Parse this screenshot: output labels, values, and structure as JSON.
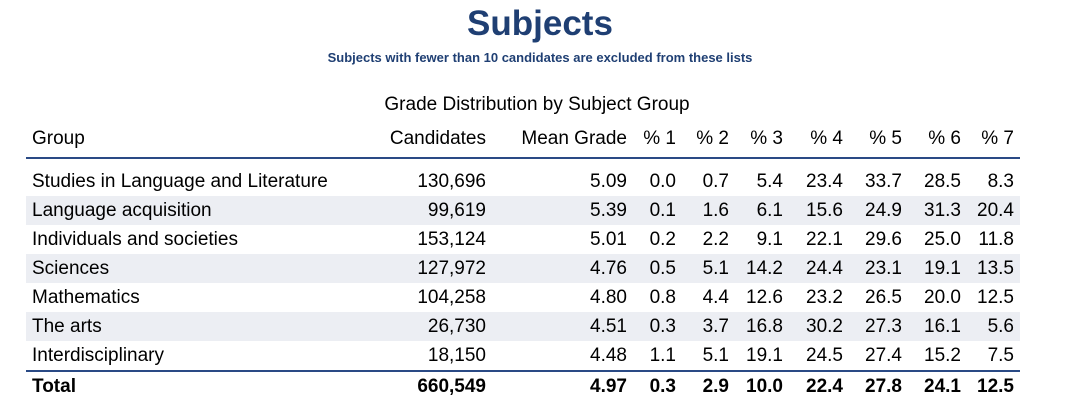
{
  "header": {
    "title": "Subjects",
    "subtitle": "Subjects with fewer than 10 candidates are excluded from these lists"
  },
  "table": {
    "caption": "Grade Distribution by Subject Group",
    "columns": [
      "Group",
      "Candidates",
      "Mean Grade",
      "% 1",
      "% 2",
      "% 3",
      "% 4",
      "% 5",
      "% 6",
      "% 7"
    ],
    "rows": [
      [
        "Studies in Language and Literature",
        "130,696",
        "5.09",
        "0.0",
        "0.7",
        "5.4",
        "23.4",
        "33.7",
        "28.5",
        "8.3"
      ],
      [
        "Language acquisition",
        "99,619",
        "5.39",
        "0.1",
        "1.6",
        "6.1",
        "15.6",
        "24.9",
        "31.3",
        "20.4"
      ],
      [
        "Individuals and societies",
        "153,124",
        "5.01",
        "0.2",
        "2.2",
        "9.1",
        "22.1",
        "29.6",
        "25.0",
        "11.8"
      ],
      [
        "Sciences",
        "127,972",
        "4.76",
        "0.5",
        "5.1",
        "14.2",
        "24.4",
        "23.1",
        "19.1",
        "13.5"
      ],
      [
        "Mathematics",
        "104,258",
        "4.80",
        "0.8",
        "4.4",
        "12.6",
        "23.2",
        "26.5",
        "20.0",
        "12.5"
      ],
      [
        "The arts",
        "26,730",
        "4.51",
        "0.3",
        "3.7",
        "16.8",
        "30.2",
        "27.3",
        "16.1",
        "5.6"
      ],
      [
        "Interdisciplinary",
        "18,150",
        "4.48",
        "1.1",
        "5.1",
        "19.1",
        "24.5",
        "27.4",
        "15.2",
        "7.5"
      ]
    ],
    "total": [
      "Total",
      "660,549",
      "4.97",
      "0.3",
      "2.9",
      "10.0",
      "22.4",
      "27.8",
      "24.1",
      "12.5"
    ]
  },
  "colors": {
    "heading": "#1f3f73",
    "rule": "#2a4a85",
    "stripe": "#eceef3"
  }
}
